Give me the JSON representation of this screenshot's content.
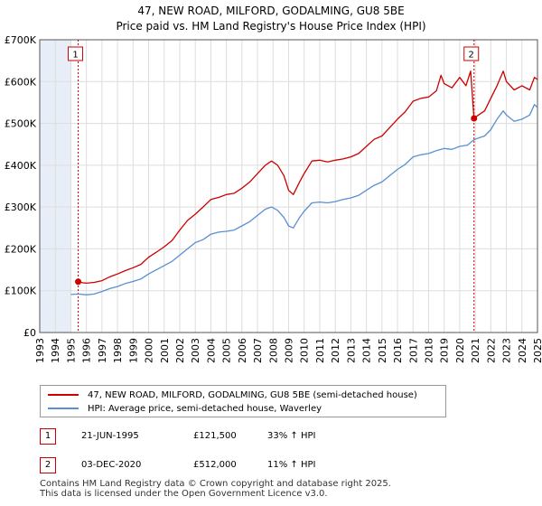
{
  "title_line1": "47, NEW ROAD, MILFORD, GODALMING, GU8 5BE",
  "title_line2": "Price paid vs. HM Land Registry's House Price Index (HPI)",
  "colors": {
    "property": "#cc0000",
    "hpi": "#5b8fd1",
    "shade": "#e8eef8",
    "marker_border": "#cc0000",
    "grid": "#dddddd"
  },
  "chart_data": {
    "type": "line",
    "title": "Price paid vs. HM Land Registry's House Price Index (HPI)",
    "xlim": [
      1993,
      2025
    ],
    "ylim": [
      0,
      700000
    ],
    "y_ticks": [
      0,
      100000,
      200000,
      300000,
      400000,
      500000,
      600000,
      700000
    ],
    "y_tick_labels": [
      "£0",
      "£100K",
      "£200K",
      "£300K",
      "£400K",
      "£500K",
      "£600K",
      "£700K"
    ],
    "x_ticks": [
      1993,
      1994,
      1995,
      1996,
      1997,
      1998,
      1999,
      2000,
      2001,
      2002,
      2003,
      2004,
      2005,
      2006,
      2007,
      2008,
      2009,
      2010,
      2011,
      2012,
      2013,
      2014,
      2015,
      2016,
      2017,
      2018,
      2019,
      2020,
      2021,
      2022,
      2023,
      2024,
      2025
    ],
    "shaded_before": 1995.0,
    "series": [
      {
        "name": "47, NEW ROAD, MILFORD, GODALMING, GU8 5BE (semi-detached house)",
        "key": "property",
        "points": [
          [
            1995.47,
            121500
          ],
          [
            1995.75,
            119000
          ],
          [
            1996.0,
            118000
          ],
          [
            1996.5,
            120000
          ],
          [
            1997.0,
            124000
          ],
          [
            1997.5,
            133000
          ],
          [
            1998.0,
            140000
          ],
          [
            1998.5,
            148000
          ],
          [
            1999.0,
            155000
          ],
          [
            1999.5,
            163000
          ],
          [
            2000.0,
            180000
          ],
          [
            2000.5,
            192000
          ],
          [
            2001.0,
            205000
          ],
          [
            2001.5,
            220000
          ],
          [
            2002.0,
            245000
          ],
          [
            2002.5,
            268000
          ],
          [
            2003.0,
            283000
          ],
          [
            2003.5,
            300000
          ],
          [
            2004.0,
            318000
          ],
          [
            2004.5,
            323000
          ],
          [
            2005.0,
            330000
          ],
          [
            2005.5,
            333000
          ],
          [
            2006.0,
            345000
          ],
          [
            2006.5,
            360000
          ],
          [
            2007.0,
            380000
          ],
          [
            2007.5,
            400000
          ],
          [
            2007.9,
            410000
          ],
          [
            2008.3,
            400000
          ],
          [
            2008.7,
            375000
          ],
          [
            2009.0,
            340000
          ],
          [
            2009.3,
            330000
          ],
          [
            2009.7,
            360000
          ],
          [
            2010.0,
            380000
          ],
          [
            2010.5,
            410000
          ],
          [
            2011.0,
            412000
          ],
          [
            2011.5,
            408000
          ],
          [
            2012.0,
            412000
          ],
          [
            2012.5,
            415000
          ],
          [
            2013.0,
            420000
          ],
          [
            2013.5,
            428000
          ],
          [
            2014.0,
            445000
          ],
          [
            2014.5,
            462000
          ],
          [
            2015.0,
            470000
          ],
          [
            2015.5,
            490000
          ],
          [
            2016.0,
            510000
          ],
          [
            2016.5,
            528000
          ],
          [
            2017.0,
            553000
          ],
          [
            2017.5,
            560000
          ],
          [
            2018.0,
            563000
          ],
          [
            2018.5,
            578000
          ],
          [
            2018.8,
            615000
          ],
          [
            2019.0,
            595000
          ],
          [
            2019.5,
            585000
          ],
          [
            2020.0,
            610000
          ],
          [
            2020.4,
            590000
          ],
          [
            2020.7,
            625000
          ],
          [
            2020.92,
            512000
          ],
          [
            2021.2,
            520000
          ],
          [
            2021.6,
            530000
          ],
          [
            2022.0,
            560000
          ],
          [
            2022.4,
            590000
          ],
          [
            2022.8,
            625000
          ],
          [
            2023.0,
            600000
          ],
          [
            2023.5,
            580000
          ],
          [
            2024.0,
            590000
          ],
          [
            2024.5,
            580000
          ],
          [
            2024.8,
            610000
          ],
          [
            2025.0,
            605000
          ]
        ]
      },
      {
        "name": "HPI: Average price, semi-detached house, Waverley",
        "key": "hpi",
        "points": [
          [
            1995.0,
            91000
          ],
          [
            1995.5,
            92000
          ],
          [
            1996.0,
            90000
          ],
          [
            1996.5,
            92000
          ],
          [
            1997.0,
            98000
          ],
          [
            1997.5,
            105000
          ],
          [
            1998.0,
            110000
          ],
          [
            1998.5,
            117000
          ],
          [
            1999.0,
            122000
          ],
          [
            1999.5,
            128000
          ],
          [
            2000.0,
            140000
          ],
          [
            2000.5,
            150000
          ],
          [
            2001.0,
            160000
          ],
          [
            2001.5,
            170000
          ],
          [
            2002.0,
            185000
          ],
          [
            2002.5,
            200000
          ],
          [
            2003.0,
            215000
          ],
          [
            2003.5,
            222000
          ],
          [
            2004.0,
            235000
          ],
          [
            2004.5,
            240000
          ],
          [
            2005.0,
            242000
          ],
          [
            2005.5,
            245000
          ],
          [
            2006.0,
            255000
          ],
          [
            2006.5,
            265000
          ],
          [
            2007.0,
            280000
          ],
          [
            2007.5,
            295000
          ],
          [
            2007.9,
            300000
          ],
          [
            2008.3,
            292000
          ],
          [
            2008.7,
            275000
          ],
          [
            2009.0,
            255000
          ],
          [
            2009.3,
            250000
          ],
          [
            2009.7,
            275000
          ],
          [
            2010.0,
            290000
          ],
          [
            2010.5,
            310000
          ],
          [
            2011.0,
            312000
          ],
          [
            2011.5,
            310000
          ],
          [
            2012.0,
            313000
          ],
          [
            2012.5,
            318000
          ],
          [
            2013.0,
            322000
          ],
          [
            2013.5,
            328000
          ],
          [
            2014.0,
            340000
          ],
          [
            2014.5,
            352000
          ],
          [
            2015.0,
            360000
          ],
          [
            2015.5,
            375000
          ],
          [
            2016.0,
            390000
          ],
          [
            2016.5,
            402000
          ],
          [
            2017.0,
            420000
          ],
          [
            2017.5,
            425000
          ],
          [
            2018.0,
            428000
          ],
          [
            2018.5,
            435000
          ],
          [
            2019.0,
            440000
          ],
          [
            2019.5,
            438000
          ],
          [
            2020.0,
            445000
          ],
          [
            2020.5,
            448000
          ],
          [
            2020.92,
            461000
          ],
          [
            2021.2,
            465000
          ],
          [
            2021.6,
            470000
          ],
          [
            2022.0,
            485000
          ],
          [
            2022.4,
            510000
          ],
          [
            2022.8,
            530000
          ],
          [
            2023.0,
            520000
          ],
          [
            2023.5,
            505000
          ],
          [
            2024.0,
            510000
          ],
          [
            2024.5,
            520000
          ],
          [
            2024.8,
            545000
          ],
          [
            2025.0,
            538000
          ]
        ]
      }
    ],
    "annotations": [
      {
        "label": "1",
        "x": 1995.47,
        "y": 121500
      },
      {
        "label": "2",
        "x": 2020.92,
        "y": 512000
      }
    ]
  },
  "legend": {
    "property_label": "47, NEW ROAD, MILFORD, GODALMING, GU8 5BE (semi-detached house)",
    "hpi_label": "HPI: Average price, semi-detached house, Waverley"
  },
  "sales": [
    {
      "num": "1",
      "date": "21-JUN-1995",
      "price": "£121,500",
      "hpi": "33% ↑ HPI"
    },
    {
      "num": "2",
      "date": "03-DEC-2020",
      "price": "£512,000",
      "hpi": "11% ↑ HPI"
    }
  ],
  "footer": {
    "line1": "Contains HM Land Registry data © Crown copyright and database right 2025.",
    "line2": "This data is licensed under the Open Government Licence v3.0."
  }
}
